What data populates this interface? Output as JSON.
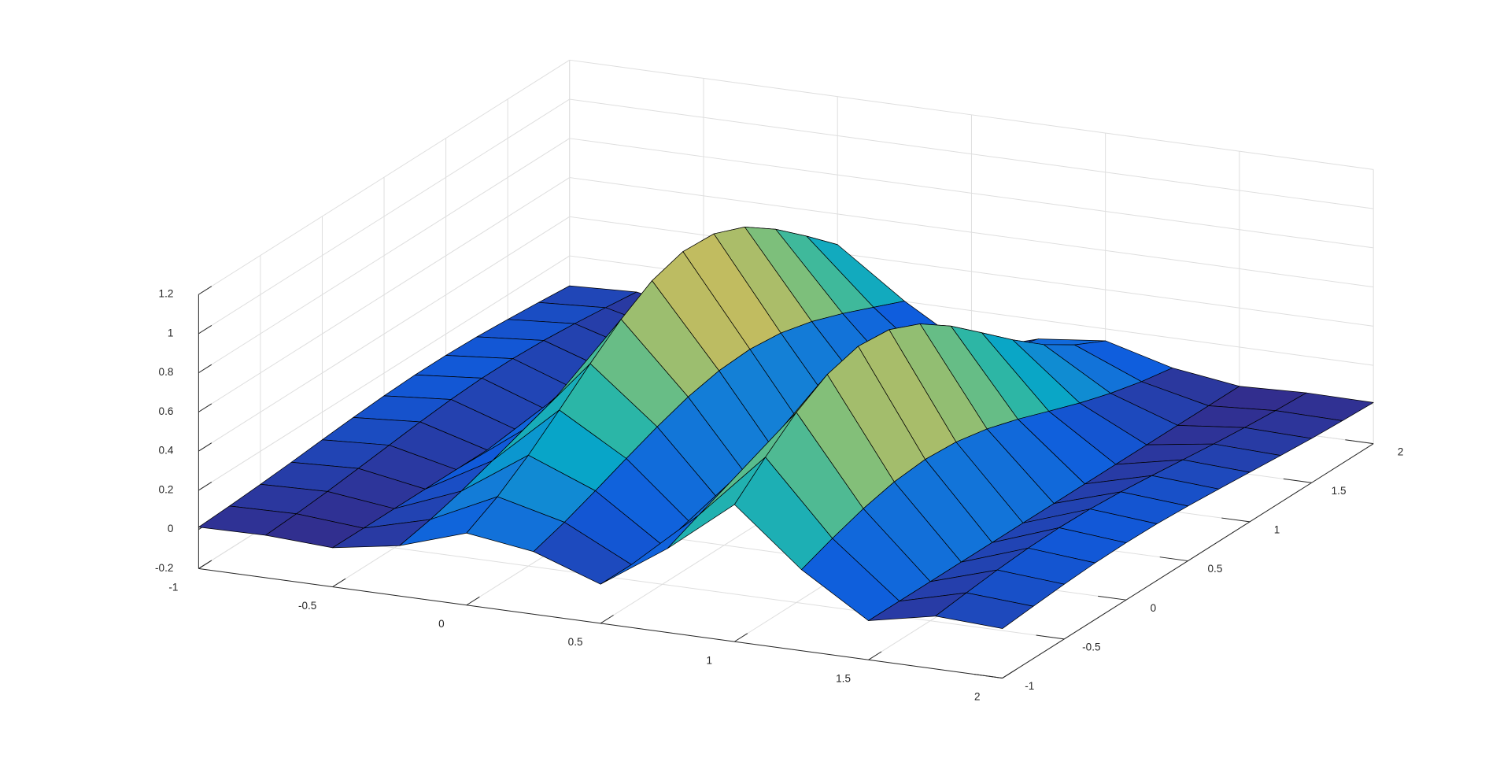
{
  "chart_data": {
    "type": "surface",
    "x": [
      -1,
      -0.75,
      -0.5,
      -0.25,
      0,
      0.25,
      0.5,
      0.75,
      1,
      1.25,
      1.5,
      1.75,
      2
    ],
    "y": [
      -1,
      -0.75,
      -0.5,
      -0.25,
      0,
      0.25,
      0.5,
      0.75,
      1,
      1.25,
      1.5,
      1.75,
      2
    ],
    "z": [
      [
        0.012,
        0.017,
        0,
        0.057,
        0.168,
        0.12,
        0,
        0.229,
        0.5,
        0.214,
        0,
        0.07,
        0.053
      ],
      [
        0.02,
        0.027,
        0,
        0.091,
        0.254,
        0.17,
        0,
        0.298,
        0.642,
        0.274,
        0,
        0.089,
        0.067
      ],
      [
        0.031,
        0.041,
        0,
        0.136,
        0.366,
        0.231,
        0,
        0.363,
        0.771,
        0.326,
        0,
        0.106,
        0.08
      ],
      [
        0.044,
        0.059,
        0,
        0.191,
        0.497,
        0.296,
        0,
        0.416,
        0.865,
        0.363,
        0,
        0.118,
        0.089
      ],
      [
        0.059,
        0.078,
        0,
        0.249,
        0.634,
        0.358,
        0,
        0.448,
        0.909,
        0.378,
        0,
        0.122,
        0.092
      ],
      [
        0.073,
        0.097,
        0,
        0.306,
        0.761,
        0.411,
        0,
        0.454,
        0.894,
        0.367,
        0,
        0.118,
        0.089
      ],
      [
        0.084,
        0.112,
        0,
        0.35,
        0.858,
        0.445,
        0,
        0.434,
        0.824,
        0.334,
        0,
        0.106,
        0.08
      ],
      [
        0.091,
        0.121,
        0,
        0.376,
        0.907,
        0.455,
        0,
        0.392,
        0.713,
        0.284,
        0,
        0.089,
        0.067
      ],
      [
        0.091,
        0.121,
        0,
        0.375,
        0.898,
        0.438,
        0,
        0.333,
        0.579,
        0.225,
        0,
        0.07,
        0.053
      ],
      [
        0.086,
        0.114,
        0,
        0.351,
        0.833,
        0.397,
        0,
        0.269,
        0.443,
        0.167,
        0,
        0.051,
        0.039
      ],
      [
        0.075,
        0.1,
        0,
        0.307,
        0.722,
        0.338,
        0,
        0.206,
        0.319,
        0.117,
        0,
        0.035,
        0.026
      ],
      [
        0.062,
        0.082,
        0,
        0.25,
        0.587,
        0.27,
        0,
        0.15,
        0.218,
        0.077,
        0,
        0.022,
        0.017
      ],
      [
        0.047,
        0.062,
        0,
        0.19,
        0.444,
        0.202,
        0,
        0.102,
        0.139,
        0.047,
        0,
        0.013,
        0.01
      ]
    ],
    "xlim": [
      -1,
      2
    ],
    "ylim": [
      -1,
      2
    ],
    "zlim": [
      -0.2,
      1.2
    ],
    "xticks": [
      -1,
      -0.5,
      0,
      0.5,
      1,
      1.5,
      2
    ],
    "yticks": [
      -1,
      -0.5,
      0,
      0.5,
      1,
      1.5,
      2
    ],
    "zticks": [
      -0.2,
      0,
      0.2,
      0.4,
      0.6,
      0.8,
      1,
      1.2
    ],
    "colormap": [
      "#352a87",
      "#0f5cdd",
      "#1481d6",
      "#06a4ca",
      "#2eb7a4",
      "#7abf7c",
      "#c6bc5e",
      "#f3c43a",
      "#f9fb0e"
    ],
    "edgecolor": "#000000",
    "grid": true
  }
}
